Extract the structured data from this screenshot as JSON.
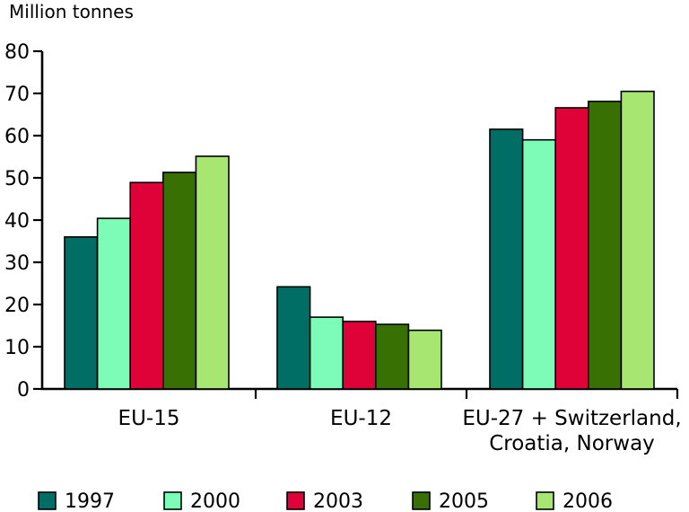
{
  "chart_data": {
    "type": "bar",
    "title": "",
    "ylabel": "Million tonnes",
    "xlabel": "",
    "ylim": [
      0,
      80
    ],
    "ytick_step": 10,
    "ytick_labels": [
      "0",
      "10",
      "20",
      "30",
      "40",
      "50",
      "60",
      "70",
      "80"
    ],
    "categories": [
      "EU-15",
      "EU-12",
      "EU-27 + Switzerland,\nCroatia, Norway"
    ],
    "series": [
      {
        "name": "1997",
        "color": "#006E64",
        "values": [
          36.0,
          24.2,
          61.5
        ]
      },
      {
        "name": "2000",
        "color": "#7DFCB8",
        "values": [
          40.4,
          17.0,
          59.0
        ]
      },
      {
        "name": "2003",
        "color": "#DE0239",
        "values": [
          48.9,
          16.0,
          66.6
        ]
      },
      {
        "name": "2005",
        "color": "#387004",
        "values": [
          51.3,
          15.3,
          68.1
        ]
      },
      {
        "name": "2006",
        "color": "#A6E671",
        "values": [
          55.1,
          13.9,
          70.5
        ]
      }
    ],
    "legend_position": "bottom",
    "grid": false,
    "axis_color": "#000000",
    "bar_outline_color": "#000000",
    "background_color": "#ffffff"
  }
}
